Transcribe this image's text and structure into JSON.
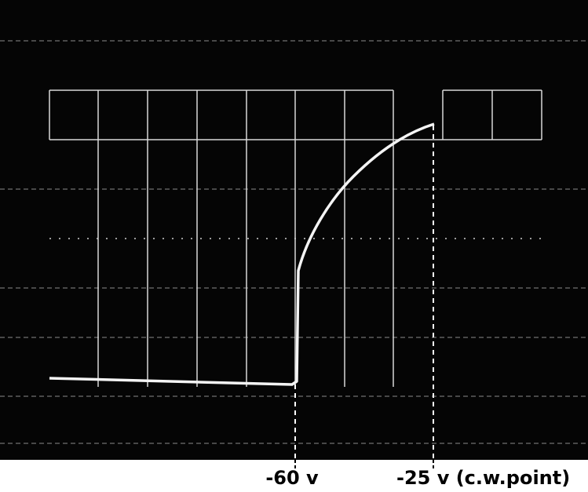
{
  "labels": {
    "left": "-60 v",
    "right": "-25 v (c.w.point)"
  }
}
